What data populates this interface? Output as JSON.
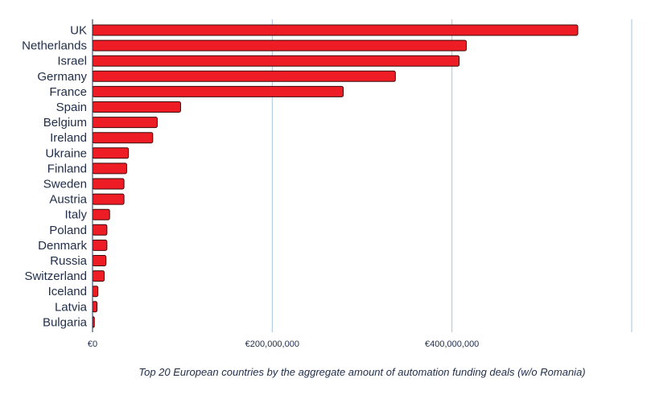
{
  "chart_data": {
    "type": "bar",
    "orientation": "horizontal",
    "caption": "Top 20 European countries by the aggregate amount of automation funding deals (w/o Romania)",
    "categories": [
      "UK",
      "Netherlands",
      "Israel",
      "Germany",
      "France",
      "Spain",
      "Belgium",
      "Ireland",
      "Ukraine",
      "Finland",
      "Sweden",
      "Austria",
      "Italy",
      "Poland",
      "Denmark",
      "Russia",
      "Switzerland",
      "Iceland",
      "Latvia",
      "Bulgaria"
    ],
    "values": [
      540000000,
      416000000,
      408000000,
      337000000,
      279000000,
      98000000,
      72000000,
      67000000,
      40000000,
      38000000,
      35000000,
      35000000,
      19000000,
      16000000,
      16000000,
      15000000,
      13000000,
      6000000,
      5000000,
      2000000
    ],
    "xticks": [
      {
        "value": 0,
        "label": "€0"
      },
      {
        "value": 200000000,
        "label": "€200,000,000"
      },
      {
        "value": 400000000,
        "label": "€400,000,000"
      }
    ],
    "xlim": [
      0,
      600000000
    ],
    "grid": true,
    "bar_color": "#ee1c25",
    "bar_edge_color": "#3a0a0a",
    "grid_color": "#a8c4e0"
  }
}
